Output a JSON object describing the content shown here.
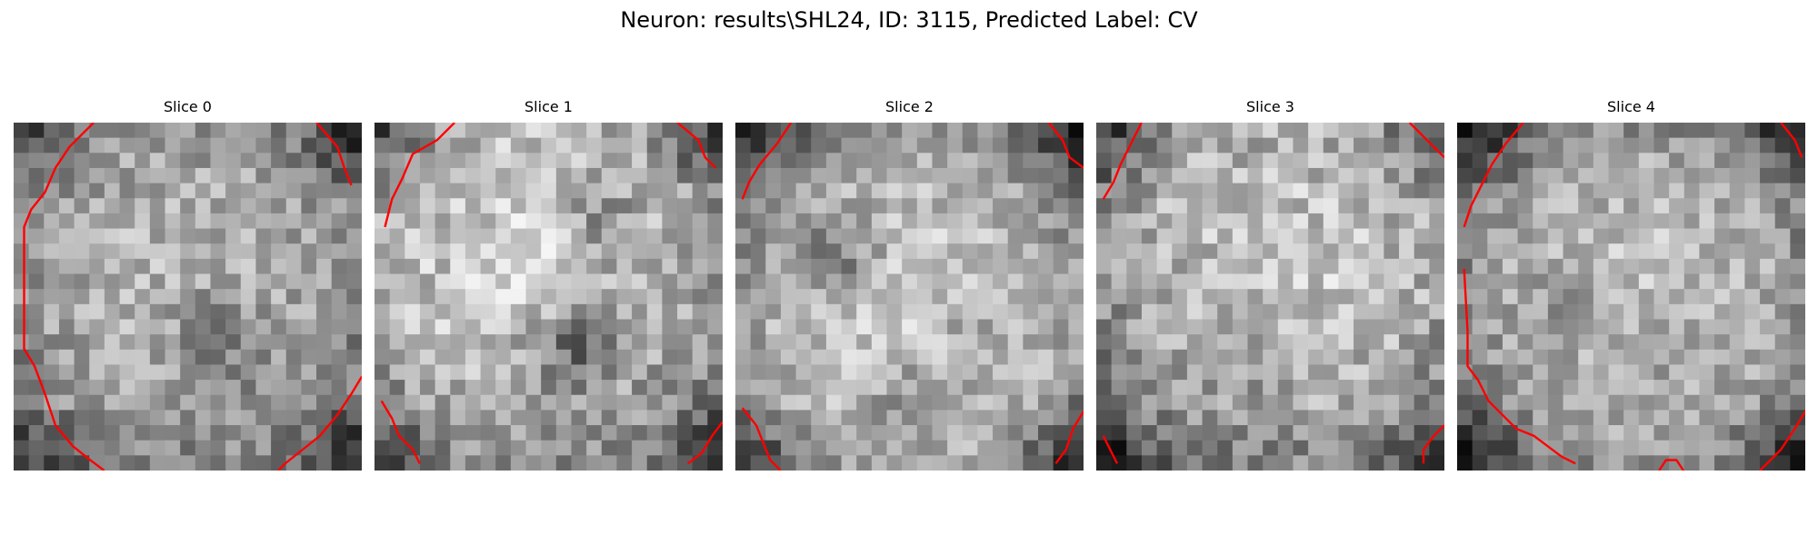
{
  "figure": {
    "title": "Neuron: results\\SHL24, ID: 3115, Predicted Label: CV"
  },
  "slices": [
    {
      "title": "Slice 0"
    },
    {
      "title": "Slice 1"
    },
    {
      "title": "Slice 2"
    },
    {
      "title": "Slice 3"
    },
    {
      "title": "Slice 4"
    }
  ],
  "colors": {
    "contour": "#ff0000",
    "colormap": "gray"
  }
}
